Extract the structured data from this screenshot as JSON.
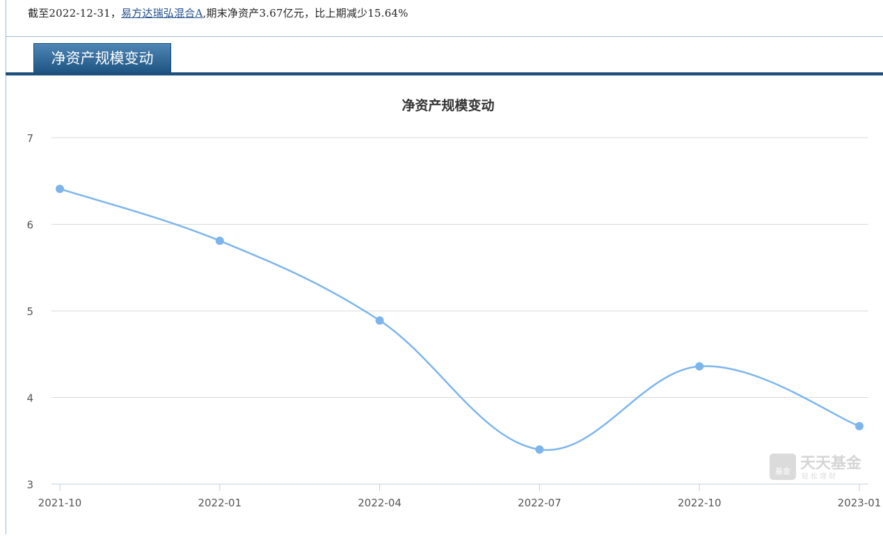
{
  "summary": {
    "prefix": "截至2022-12-31，",
    "fund_link": "易方达瑞弘混合A",
    "suffix": ",期末净资产3.67亿元，比上期减少15.64%"
  },
  "tab": {
    "label": "净资产规模变动"
  },
  "watermark": {
    "brand": "天天基金",
    "slogan": "轻松理财",
    "logo_text": "基金"
  },
  "colors": {
    "line": "#7cb5ec",
    "tab": "#1e5583",
    "grid": "#d8d8d8"
  },
  "chart_data": {
    "type": "line",
    "title": "净资产规模变动",
    "categories": [
      "2021-10",
      "2022-01",
      "2022-04",
      "2022-07",
      "2022-10",
      "2023-01"
    ],
    "values": [
      6.41,
      5.81,
      4.89,
      3.4,
      4.36,
      3.67
    ],
    "yticks": [
      3,
      4,
      5,
      6,
      7
    ],
    "ylim": [
      3,
      7
    ],
    "grid": true,
    "smooth": true
  }
}
